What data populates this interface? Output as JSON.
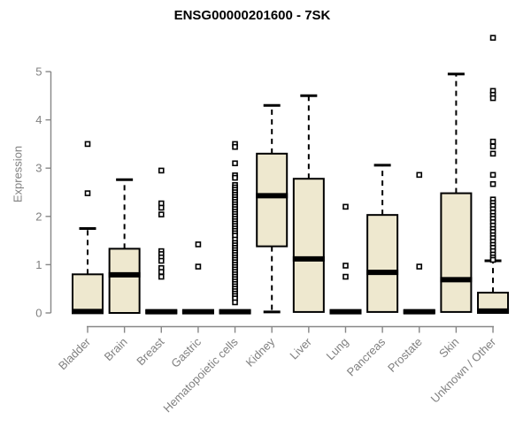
{
  "chart_data": {
    "type": "boxplot",
    "title": "ENSG00000201600 - 7SK",
    "xlabel": "",
    "ylabel": "Expression",
    "ylim": [
      0,
      5.8
    ],
    "yticks": [
      0,
      1,
      2,
      3,
      4,
      5
    ],
    "grid": false,
    "legend": "none",
    "categories": [
      "Bladder",
      "Brain",
      "Breast",
      "Gastric",
      "Hematopoietic cells",
      "Kidney",
      "Liver",
      "Lung",
      "Pancreas",
      "Prostate",
      "Skin",
      "Unknown / Other"
    ],
    "series": [
      {
        "name": "Bladder",
        "q1": 0,
        "median": 0.03,
        "q3": 0.8,
        "whisker_low": 0,
        "whisker_high": 1.75,
        "outliers": [
          3.5,
          2.48
        ]
      },
      {
        "name": "Brain",
        "q1": 0,
        "median": 0.79,
        "q3": 1.33,
        "whisker_low": 0,
        "whisker_high": 2.76,
        "outliers": []
      },
      {
        "name": "Breast",
        "q1": 0,
        "median": 0.025,
        "q3": 0.05,
        "whisker_low": 0,
        "whisker_high": 0.05,
        "outliers": [
          2.95,
          2.27,
          2.18,
          2.04,
          1.28,
          1.22,
          1.15,
          1.08,
          0.93,
          0.85,
          0.75
        ]
      },
      {
        "name": "Gastric",
        "q1": 0,
        "median": 0.025,
        "q3": 0.05,
        "whisker_low": 0,
        "whisker_high": 0.05,
        "outliers": [
          1.42,
          0.96
        ]
      },
      {
        "name": "Hematopoietic cells",
        "q1": 0,
        "median": 0.025,
        "q3": 0.05,
        "whisker_low": 0,
        "whisker_high": 0.05,
        "outliers": [
          3.5,
          3.44,
          3.1,
          2.85,
          2.8,
          2.65,
          2.6,
          2.55,
          2.5,
          2.45,
          2.4,
          2.35,
          2.3,
          2.25,
          2.2,
          2.15,
          2.1,
          2.05,
          2.0,
          1.95,
          1.9,
          1.85,
          1.8,
          1.75,
          1.7,
          1.65,
          1.6,
          1.52,
          1.45,
          1.4,
          1.35,
          1.3,
          1.25,
          1.2,
          1.15,
          1.1,
          1.05,
          1.0,
          0.95,
          0.9,
          0.85,
          0.8,
          0.75,
          0.7,
          0.65,
          0.6,
          0.55,
          0.5,
          0.45,
          0.4,
          0.35,
          0.3,
          0.22
        ]
      },
      {
        "name": "Kidney",
        "q1": 1.38,
        "median": 2.43,
        "q3": 3.3,
        "whisker_low": 0.02,
        "whisker_high": 4.3,
        "outliers": []
      },
      {
        "name": "Liver",
        "q1": 0.02,
        "median": 1.12,
        "q3": 2.78,
        "whisker_low": 0.02,
        "whisker_high": 4.5,
        "outliers": []
      },
      {
        "name": "Lung",
        "q1": 0,
        "median": 0.025,
        "q3": 0.05,
        "whisker_low": 0,
        "whisker_high": 0.05,
        "outliers": [
          2.2,
          0.98,
          0.75
        ]
      },
      {
        "name": "Pancreas",
        "q1": 0.02,
        "median": 0.84,
        "q3": 2.03,
        "whisker_low": 0.02,
        "whisker_high": 3.06,
        "outliers": []
      },
      {
        "name": "Prostate",
        "q1": 0,
        "median": 0.025,
        "q3": 0.05,
        "whisker_low": 0,
        "whisker_high": 0.05,
        "outliers": [
          2.86,
          0.96
        ]
      },
      {
        "name": "Skin",
        "q1": 0.02,
        "median": 0.69,
        "q3": 2.48,
        "whisker_low": 0.02,
        "whisker_high": 4.95,
        "outliers": []
      },
      {
        "name": "Unknown / Other",
        "q1": 0,
        "median": 0.04,
        "q3": 0.42,
        "whisker_low": 0,
        "whisker_high": 1.08,
        "outliers": [
          5.7,
          4.6,
          4.52,
          4.45,
          3.55,
          3.45,
          3.3,
          2.86,
          2.67,
          2.35,
          2.28,
          2.22,
          2.15,
          2.08,
          2.01,
          1.95,
          1.88,
          1.81,
          1.74,
          1.68,
          1.61,
          1.55,
          1.48,
          1.41,
          1.35,
          1.28,
          1.21,
          1.15,
          1.1
        ]
      }
    ],
    "colors": {
      "box_fill": "#EEE8CF",
      "line": "#000000",
      "axis": "#878787",
      "tick_label": "#808080",
      "title": "#000000"
    }
  }
}
